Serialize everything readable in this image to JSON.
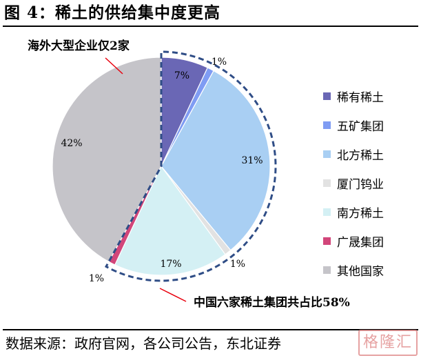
{
  "figure_title": "图  4：稀土的供给集中度更高",
  "source_text": "数据来源：政府官网，各公司公告，东北证券",
  "watermark_text": "格隆汇",
  "chart_data": {
    "type": "pie",
    "series": [
      {
        "name": "稀有稀土",
        "value": 7,
        "label": "7%",
        "color": "#6a67b5"
      },
      {
        "name": "五矿集团",
        "value": 1,
        "label": "1%",
        "color": "#7f9cf3"
      },
      {
        "name": "北方稀土",
        "value": 31,
        "label": "31%",
        "color": "#a9cff3"
      },
      {
        "name": "厦门钨业",
        "value": 1,
        "label": "1%",
        "color": "#e2e2e2"
      },
      {
        "name": "南方稀土",
        "value": 17,
        "label": "17%",
        "color": "#d4f0f4"
      },
      {
        "name": "广晟集团",
        "value": 1,
        "label": "1%",
        "color": "#d2467a"
      },
      {
        "name": "其他国家",
        "value": 42,
        "label": "42%",
        "color": "#c5c4c9"
      }
    ],
    "start_angle_deg": 0,
    "direction": "clockwise",
    "legend_position": "right",
    "annotations": {
      "overseas": "海外大型企业仅2家",
      "china": "中国六家稀土集团共占比58%"
    },
    "highlight_outline_color": "#2f4d86",
    "callout_line_color": "#e8000d"
  }
}
